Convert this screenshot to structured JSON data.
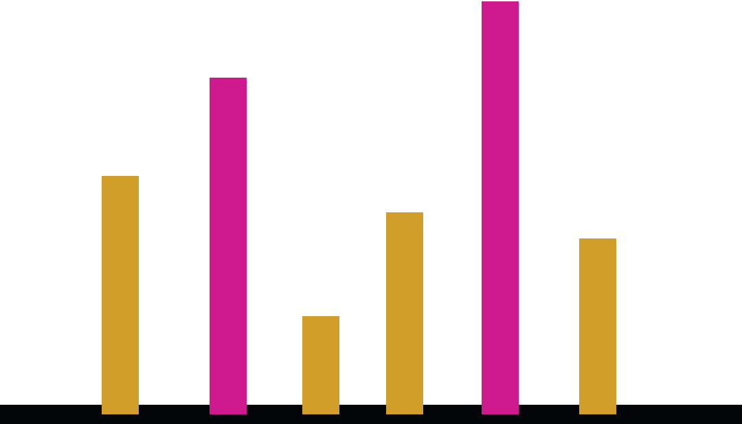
{
  "chart_data": {
    "type": "bar",
    "categories": [
      null,
      null,
      null,
      null,
      null,
      null
    ],
    "values": [
      347,
      490,
      143,
      294,
      601,
      256
    ],
    "colors": [
      "#d19e2a",
      "#cf1a8f",
      "#d19e2a",
      "#d19e2a",
      "#cf1a8f",
      "#d19e2a"
    ],
    "ylim": [
      0,
      603
    ]
  }
}
